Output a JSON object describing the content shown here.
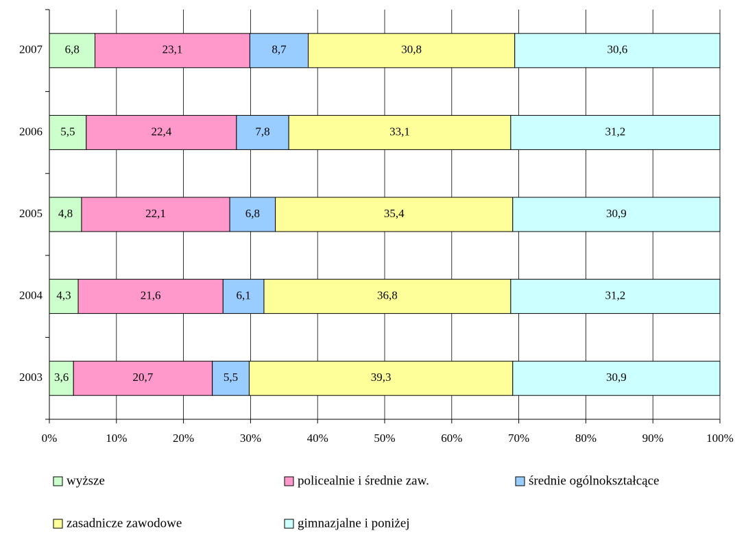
{
  "chart_data": {
    "type": "stacked_barh",
    "categories": [
      "2003",
      "2004",
      "2005",
      "2006",
      "2007"
    ],
    "series": [
      {
        "name": "wyższe",
        "color": "#ccffcc",
        "values": [
          3.6,
          4.3,
          4.8,
          5.5,
          6.8
        ],
        "value_labels": [
          "3,6",
          "4,3",
          "4,8",
          "5,5",
          "6,8"
        ]
      },
      {
        "name": "policealnie i średnie zaw.",
        "color": "#ff99cc",
        "values": [
          20.7,
          21.6,
          22.1,
          22.4,
          23.1
        ],
        "value_labels": [
          "20,7",
          "21,6",
          "22,1",
          "22,4",
          "23,1"
        ]
      },
      {
        "name": "średnie ogólnokształcące",
        "color": "#99ccff",
        "values": [
          5.5,
          6.1,
          6.8,
          7.8,
          8.7
        ],
        "value_labels": [
          "5,5",
          "6,1",
          "6,8",
          "7,8",
          "8,7"
        ]
      },
      {
        "name": "zasadnicze zawodowe",
        "color": "#ffff99",
        "values": [
          39.3,
          36.8,
          35.4,
          33.1,
          30.8
        ],
        "value_labels": [
          "39,3",
          "36,8",
          "35,4",
          "33,1",
          "30,8"
        ]
      },
      {
        "name": "gimnazjalne i poniżej",
        "color": "#ccffff",
        "values": [
          30.9,
          31.2,
          30.9,
          31.2,
          30.6
        ],
        "value_labels": [
          "30,9",
          "31,2",
          "30,9",
          "31,2",
          "30,6"
        ]
      }
    ],
    "xlim": [
      0,
      100
    ],
    "xticks": [
      {
        "value": 0,
        "label": "0%"
      },
      {
        "value": 10,
        "label": "10%"
      },
      {
        "value": 20,
        "label": "20%"
      },
      {
        "value": 30,
        "label": "30%"
      },
      {
        "value": 40,
        "label": "40%"
      },
      {
        "value": 50,
        "label": "50%"
      },
      {
        "value": 60,
        "label": "60%"
      },
      {
        "value": 70,
        "label": "70%"
      },
      {
        "value": 80,
        "label": "80%"
      },
      {
        "value": 90,
        "label": "90%"
      },
      {
        "value": 100,
        "label": "100%"
      }
    ],
    "grid": true,
    "legend": "bottom"
  }
}
